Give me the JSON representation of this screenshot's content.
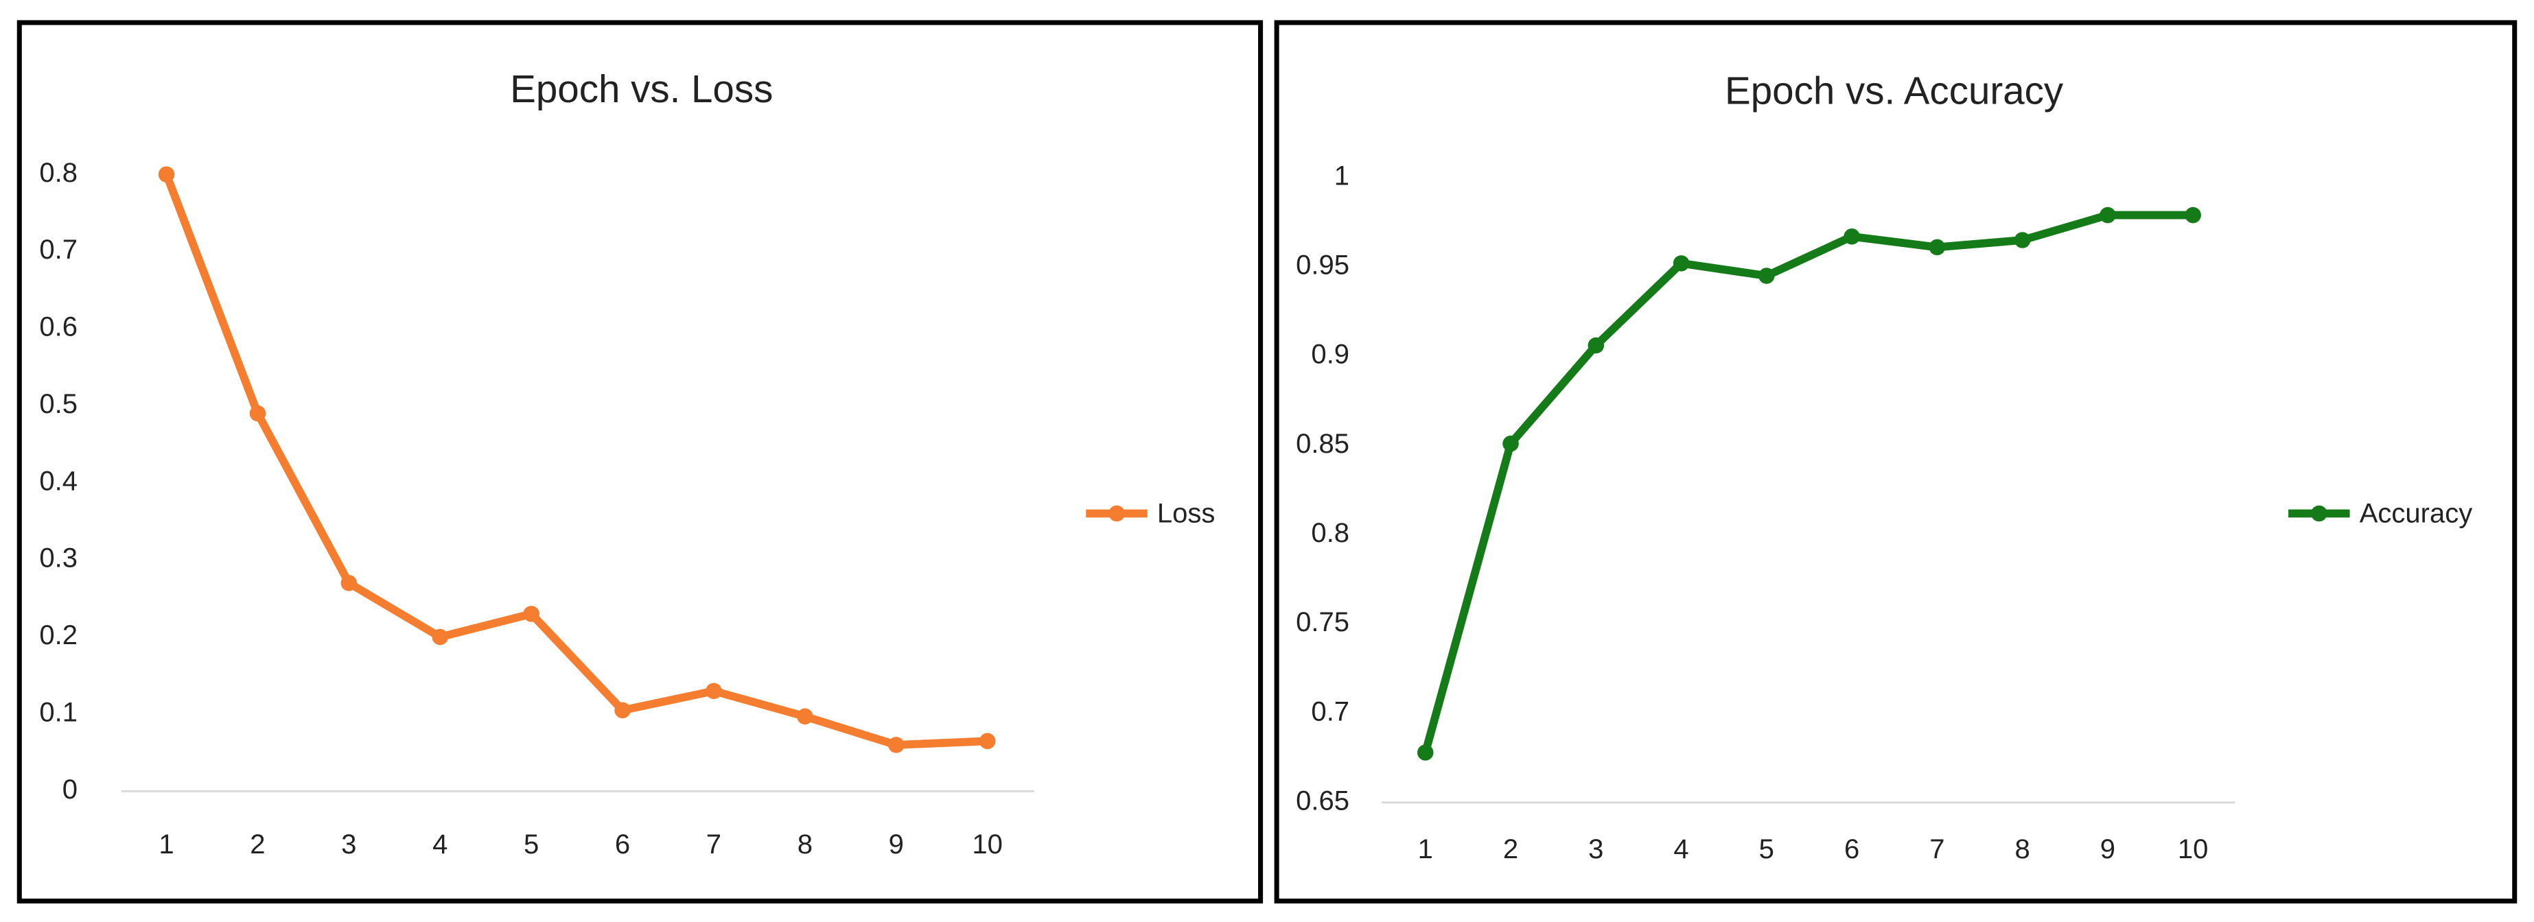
{
  "chart_data": [
    {
      "type": "line",
      "title": "Epoch vs. Loss",
      "categories": [
        1,
        2,
        3,
        4,
        5,
        6,
        7,
        8,
        9,
        10
      ],
      "series": [
        {
          "name": "Loss",
          "color": "#f47d30",
          "values": [
            0.8,
            0.49,
            0.27,
            0.2,
            0.23,
            0.105,
            0.13,
            0.097,
            0.06,
            0.065
          ]
        }
      ],
      "ylim": [
        0,
        0.8
      ],
      "yticks": [
        0,
        0.1,
        0.2,
        0.3,
        0.4,
        0.5,
        0.6,
        0.7,
        0.8
      ],
      "legend": "right"
    },
    {
      "type": "line",
      "title": "Epoch vs. Accuracy",
      "categories": [
        1,
        2,
        3,
        4,
        5,
        6,
        7,
        8,
        9,
        10
      ],
      "series": [
        {
          "name": "Accuracy",
          "color": "#157a18",
          "values": [
            0.678,
            0.851,
            0.906,
            0.952,
            0.945,
            0.967,
            0.961,
            0.965,
            0.979,
            0.979
          ]
        }
      ],
      "ylim": [
        0.65,
        1
      ],
      "yticks": [
        0.65,
        0.7,
        0.75,
        0.8,
        0.85,
        0.9,
        0.95,
        1
      ],
      "legend": "right"
    }
  ]
}
